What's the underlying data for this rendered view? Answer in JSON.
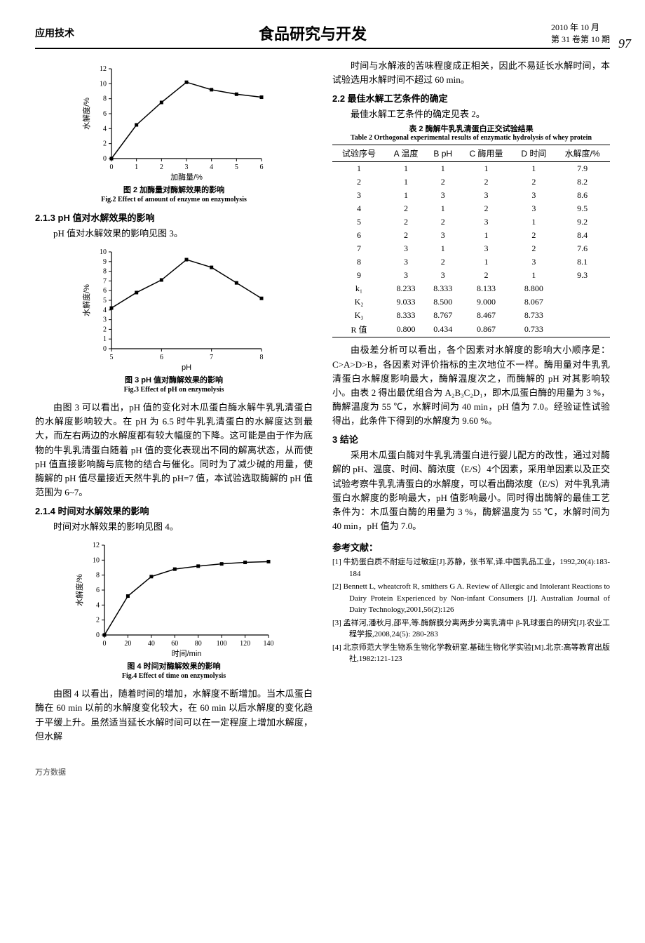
{
  "header": {
    "section": "应用技术",
    "journal": "食品研究与开发",
    "date": "2010 年 10 月",
    "issue": "第 31 卷第 10 期",
    "page": "97"
  },
  "fig2": {
    "type": "line",
    "x": [
      0,
      1,
      2,
      3,
      4,
      5,
      6
    ],
    "y": [
      0,
      4.5,
      7.5,
      10.2,
      9.2,
      8.6,
      8.2
    ],
    "xlim": [
      0,
      6
    ],
    "ylim": [
      0,
      12
    ],
    "xtick_step": 1,
    "ytick_step": 2,
    "xlabel": "加酶量/%",
    "ylabel": "水解度/%",
    "marker": "square",
    "marker_size": 5,
    "line_width": 1.5,
    "title_cn": "图 2  加酶量对酶解效果的影响",
    "title_en": "Fig.2  Effect of amount of enzyme on enzymolysis"
  },
  "sect213": {
    "heading": "2.1.3  pH 值对水解效果的影响",
    "line1": "pH 值对水解效果的影响见图 3。"
  },
  "fig3": {
    "type": "line",
    "x": [
      5,
      5.5,
      6,
      6.5,
      7,
      7.5,
      8
    ],
    "y": [
      4.2,
      5.8,
      7.1,
      9.2,
      8.4,
      6.8,
      5.2
    ],
    "xlim": [
      5,
      8
    ],
    "ylim": [
      0,
      10
    ],
    "xtick_step": 1,
    "ytick_step": 1,
    "xlabel": "pH",
    "ylabel": "水解度/%",
    "marker": "square",
    "marker_size": 5,
    "line_width": 1.5,
    "title_cn": "图 3  pH 值对酶解效果的影响",
    "title_en": "Fig.3  Effect of pH on enzymolysis"
  },
  "para_fig3": "由图 3 可以看出，pH 值的变化对木瓜蛋白酶水解牛乳乳清蛋白的水解度影响较大。在 pH 为 6.5 时牛乳乳清蛋白的水解度达到最大，而左右两边的水解度都有较大幅度的下降。这可能是由于作为底物的牛乳乳清蛋白随着 pH 值的变化表现出不同的解离状态，从而使 pH 值直接影响酶与底物的结合与催化。同时为了减少碱的用量，使酶解的 pH 值尽量接近天然牛乳的 pH=7 值，本试验选取酶解的 pH 值范围为 6~7。",
  "sect214": {
    "heading": "2.1.4  时间对水解效果的影响",
    "line1": "时间对水解效果的影响见图 4。"
  },
  "fig4": {
    "type": "line",
    "x": [
      0,
      20,
      40,
      60,
      80,
      100,
      120,
      140
    ],
    "y": [
      0,
      5.2,
      7.8,
      8.8,
      9.2,
      9.5,
      9.7,
      9.8
    ],
    "xlim": [
      0,
      140
    ],
    "ylim": [
      0,
      12
    ],
    "xtick_step": 20,
    "ytick_step": 2,
    "xlabel": "时间/min",
    "ylabel": "水解度/%",
    "marker": "square",
    "marker_size": 5,
    "line_width": 1.5,
    "title_cn": "图 4  时间对酶解效果的影响",
    "title_en": "Fig.4  Effect of time on enzymolysis"
  },
  "para_fig4": "由图 4 以看出，随着时间的增加，水解度不断增加。当木瓜蛋白酶在 60 min 以前的水解度变化较大，在 60 min 以后水解度的变化趋于平缓上升。虽然适当延长水解时间可以在一定程度上增加水解度，但水解",
  "rcol_para1": "时间与水解液的苦味程度成正相关，因此不易延长水解时间，本试验选用水解时间不超过 60 min。",
  "sect22": {
    "heading": "2.2  最佳水解工艺条件的确定",
    "line1": "最佳水解工艺条件的确定见表 2。"
  },
  "table2": {
    "title_cn": "表 2  酶解牛乳乳清蛋白正交试验结果",
    "title_en": "Table 2  Orthogonal experimental results of enzymatic hydrolysis of whey protein",
    "columns": [
      "试验序号",
      "A 温度",
      "B pH",
      "C 酶用量",
      "D 时间",
      "水解度/%"
    ],
    "rows": [
      [
        "1",
        "1",
        "1",
        "1",
        "1",
        "7.9"
      ],
      [
        "2",
        "1",
        "2",
        "2",
        "2",
        "8.2"
      ],
      [
        "3",
        "1",
        "3",
        "3",
        "3",
        "8.6"
      ],
      [
        "4",
        "2",
        "1",
        "2",
        "3",
        "9.5"
      ],
      [
        "5",
        "2",
        "2",
        "3",
        "1",
        "9.2"
      ],
      [
        "6",
        "2",
        "3",
        "1",
        "2",
        "8.4"
      ],
      [
        "7",
        "3",
        "1",
        "3",
        "2",
        "7.6"
      ],
      [
        "8",
        "3",
        "2",
        "1",
        "3",
        "8.1"
      ],
      [
        "9",
        "3",
        "3",
        "2",
        "1",
        "9.3"
      ],
      [
        "k₁",
        "8.233",
        "8.333",
        "8.133",
        "8.800",
        ""
      ],
      [
        "K₂",
        "9.033",
        "8.500",
        "9.000",
        "8.067",
        ""
      ],
      [
        "K₃",
        "8.333",
        "8.767",
        "8.467",
        "8.733",
        ""
      ],
      [
        "R 值",
        "0.800",
        "0.434",
        "0.867",
        "0.733",
        ""
      ]
    ]
  },
  "para_table2": "由极差分析可以看出，各个因素对水解度的影响大小顺序是：C>A>D>B，各因素对评价指标的主次地位不一样。酶用量对牛乳乳清蛋白水解度影响最大，酶解温度次之，而酶解的 pH 对其影响较小。由表 2 得出最优组合为 A₂B₃C₂D₁，即木瓜蛋白酶的用量为 3 %，酶解温度为 55 ℃，水解时间为 40 min，pH 值为 7.0。经验证性试验得出，此条件下得到的水解度为 9.60 %。",
  "sect3": {
    "heading": "3  结论"
  },
  "para_conclusion": "采用木瓜蛋白酶对牛乳乳清蛋白进行婴儿配方的改性，通过对酶解的 pH、温度、时间、酶浓度（E/S）4个因素，采用单因素以及正交试验考察牛乳乳清蛋白的水解度，可以看出酶浓度（E/S）对牛乳乳清蛋白水解度的影响最大，pH 值影响最小。同时得出酶解的最佳工艺条件为：木瓜蛋白酶的用量为 3 %，酶解温度为 55 ℃，水解时间为 40 min，pH 值为 7.0。",
  "refs": {
    "title": "参考文献：",
    "items": [
      "[1]  牛奶蛋白质不耐症与过敏症[J].苏静，张书军,译.中国乳品工业，1992,20(4):183-184",
      "[2]  Bennett L, wheatcroft R, smithers G A. Review of Allergic and Intolerant Reactions to Dairy Protein Experienced by Non-infant Consumers [J]. Australian Journal of Dairy Technology,2001,56(2):126",
      "[3]  孟祥河,潘秋月,邵平,等.酶解膜分离两步分离乳清中 β-乳球蛋白的研究[J].农业工程学报,2008,24(5): 280-283",
      "[4]  北京师范大学生物系生物化学教研室.基础生物化学实验[M].北京:高等教育出版社,1982:121-123"
    ]
  },
  "footer": "万方数据"
}
